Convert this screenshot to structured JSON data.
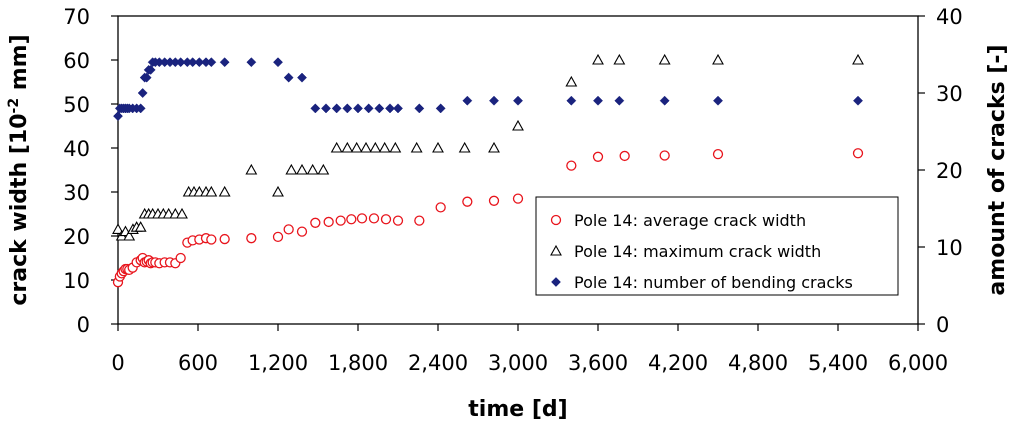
{
  "chart_data": {
    "type": "scatter",
    "xlabel": "time [d]",
    "ylabel_left_main": "crack width  [10",
    "ylabel_left_sup": "-2",
    "ylabel_left_tail": " mm]",
    "ylabel_right": "amount of cracks [-]",
    "xlim": [
      0,
      6000
    ],
    "ylim_left": [
      0,
      70
    ],
    "ylim_right": [
      0,
      40
    ],
    "x_ticks": [
      0,
      600,
      1200,
      1800,
      2400,
      3000,
      3600,
      4200,
      4800,
      5400,
      6000
    ],
    "x_tick_labels": [
      "0",
      "600",
      "1,200",
      "1,800",
      "2,400",
      "3,000",
      "3,600",
      "4,200",
      "4,800",
      "5,400",
      "6,000"
    ],
    "y_left_ticks": [
      0,
      10,
      20,
      30,
      40,
      50,
      60,
      70
    ],
    "y_left_tick_labels": [
      "0",
      "10",
      "20",
      "30",
      "40",
      "50",
      "60",
      "70"
    ],
    "y_right_ticks": [
      0,
      10,
      20,
      30,
      40
    ],
    "y_right_tick_labels": [
      "0",
      "10",
      "20",
      "30",
      "40"
    ],
    "legend_position": "lower-right",
    "series": [
      {
        "name": "Pole 14: average crack width",
        "axis": "left",
        "marker": "circle-open",
        "color": "#e8141c",
        "x": [
          0,
          14,
          28,
          42,
          56,
          70,
          84,
          110,
          140,
          170,
          185,
          200,
          215,
          230,
          245,
          260,
          280,
          310,
          350,
          390,
          430,
          470,
          520,
          560,
          610,
          660,
          700,
          800,
          1000,
          1200,
          1280,
          1380,
          1480,
          1580,
          1670,
          1750,
          1830,
          1920,
          2010,
          2100,
          2260,
          2420,
          2620,
          2820,
          3000,
          3400,
          3600,
          3800,
          4100,
          4500,
          5550
        ],
        "y": [
          9.5,
          10.8,
          11.5,
          12.0,
          12.5,
          12.5,
          12.3,
          12.8,
          14.0,
          14.5,
          15.0,
          14.0,
          14.2,
          14.5,
          13.8,
          14.0,
          14.0,
          13.8,
          14.0,
          14.0,
          13.8,
          15.0,
          18.5,
          19.0,
          19.2,
          19.5,
          19.2,
          19.3,
          19.5,
          19.8,
          21.5,
          21.0,
          23.0,
          23.2,
          23.5,
          23.8,
          24.0,
          24.0,
          23.8,
          23.5,
          23.5,
          26.5,
          27.8,
          28.0,
          28.5,
          36.0,
          38.0,
          38.2,
          38.3,
          38.6,
          38.8
        ]
      },
      {
        "name": "Pole 14: maximum crack width",
        "axis": "left",
        "marker": "triangle-open",
        "color": "#000000",
        "x": [
          0,
          28,
          56,
          84,
          112,
          140,
          170,
          200,
          230,
          260,
          300,
          340,
          380,
          430,
          480,
          530,
          570,
          610,
          660,
          700,
          800,
          1000,
          1200,
          1300,
          1380,
          1460,
          1540,
          1640,
          1720,
          1790,
          1860,
          1930,
          2000,
          2080,
          2240,
          2400,
          2600,
          2820,
          3000,
          3400,
          3600,
          3760,
          4100,
          4500,
          5550
        ],
        "y": [
          21.5,
          20.0,
          21.0,
          20.0,
          21.5,
          22.0,
          22.0,
          25.0,
          25.0,
          25.0,
          25.0,
          25.0,
          25.0,
          25.0,
          25.0,
          30.0,
          30.0,
          30.0,
          30.0,
          30.0,
          30.0,
          35.0,
          30.0,
          35.0,
          35.0,
          35.0,
          35.0,
          40.0,
          40.0,
          40.0,
          40.0,
          40.0,
          40.0,
          40.0,
          40.0,
          40.0,
          40.0,
          40.0,
          45.0,
          55.0,
          60.0,
          60.0,
          60.0,
          60.0,
          60.0
        ]
      },
      {
        "name": "Pole 14: number of bending cracks",
        "axis": "right",
        "marker": "diamond-filled",
        "color": "#1a237e",
        "x": [
          0,
          14,
          28,
          42,
          56,
          70,
          84,
          110,
          140,
          170,
          185,
          200,
          215,
          230,
          245,
          260,
          280,
          310,
          350,
          390,
          430,
          470,
          520,
          560,
          610,
          660,
          700,
          800,
          1000,
          1200,
          1280,
          1380,
          1480,
          1560,
          1640,
          1720,
          1800,
          1880,
          1960,
          2040,
          2100,
          2260,
          2420,
          2620,
          2820,
          3000,
          3400,
          3600,
          3760,
          4100,
          4500,
          5550
        ],
        "y": [
          27.0,
          28.0,
          28.0,
          28.0,
          28.0,
          28.0,
          28.0,
          28.0,
          28.0,
          28.0,
          30.0,
          32.0,
          32.0,
          33.0,
          33.0,
          34.0,
          34.0,
          34.0,
          34.0,
          34.0,
          34.0,
          34.0,
          34.0,
          34.0,
          34.0,
          34.0,
          34.0,
          34.0,
          34.0,
          34.0,
          32.0,
          32.0,
          28.0,
          28.0,
          28.0,
          28.0,
          28.0,
          28.0,
          28.0,
          28.0,
          28.0,
          28.0,
          28.0,
          29.0,
          29.0,
          29.0,
          29.0,
          29.0,
          29.0,
          29.0,
          29.0,
          29.0
        ]
      }
    ]
  }
}
